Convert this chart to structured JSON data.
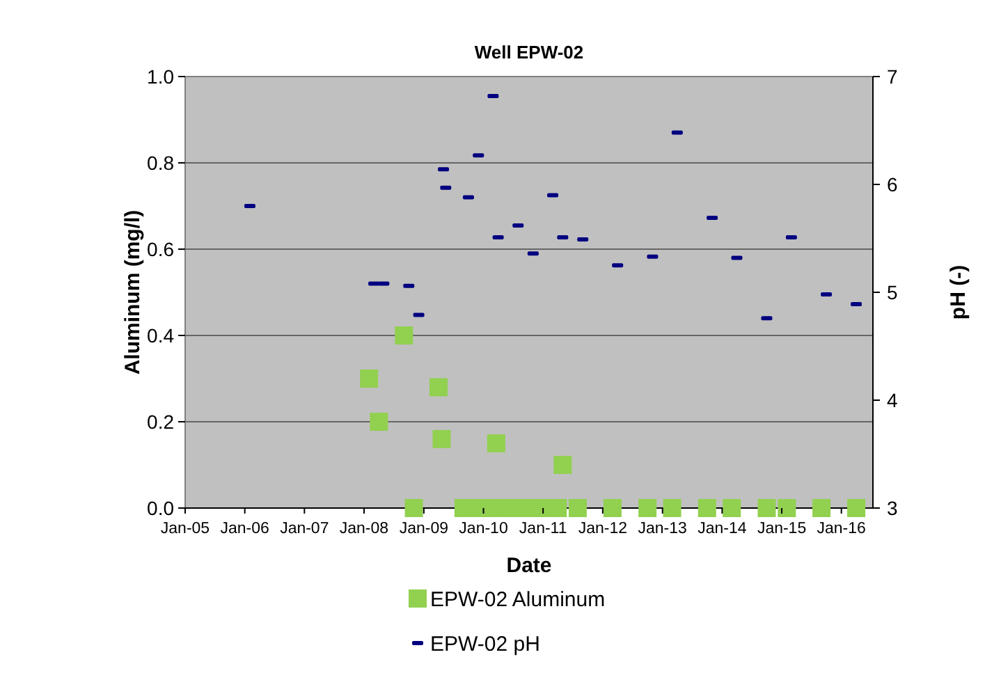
{
  "chart_data": {
    "type": "scatter",
    "title": "Well EPW-02",
    "xlabel": "Date",
    "ylabel": "Aluminum (mg/l)",
    "y2label": "pH (-)",
    "xlim": [
      "2005-01-01",
      "2016-07-12"
    ],
    "xticks": [
      {
        "value": "2005-01-01",
        "label": "Jan-05"
      },
      {
        "value": "2006-01-01",
        "label": "Jan-06"
      },
      {
        "value": "2007-01-01",
        "label": "Jan-07"
      },
      {
        "value": "2008-01-01",
        "label": "Jan-08"
      },
      {
        "value": "2009-01-01",
        "label": "Jan-09"
      },
      {
        "value": "2010-01-01",
        "label": "Jan-10"
      },
      {
        "value": "2011-01-01",
        "label": "Jan-11"
      },
      {
        "value": "2012-01-01",
        "label": "Jan-12"
      },
      {
        "value": "2013-01-01",
        "label": "Jan-13"
      },
      {
        "value": "2014-01-01",
        "label": "Jan-14"
      },
      {
        "value": "2015-01-01",
        "label": "Jan-15"
      },
      {
        "value": "2016-01-01",
        "label": "Jan-16"
      }
    ],
    "ylim": [
      0,
      1
    ],
    "yticks": [
      {
        "value": 0,
        "label": "0.0"
      },
      {
        "value": 0.2,
        "label": "0.2"
      },
      {
        "value": 0.4,
        "label": "0.4"
      },
      {
        "value": 0.6,
        "label": "0.6"
      },
      {
        "value": 0.8,
        "label": "0.8"
      },
      {
        "value": 1,
        "label": "1.0"
      }
    ],
    "y2lim": [
      3,
      7
    ],
    "y2ticks": [
      3,
      4,
      5,
      6,
      7
    ],
    "grid": "y",
    "legend": "bottom",
    "series": [
      {
        "name": "EPW-02 Aluminum",
        "color": "#92d050",
        "marker": "square",
        "x": [
          "2008-02",
          "2008-04",
          "2008-09",
          "2008-11",
          "2009-04",
          "2009-04-20",
          "2009-09",
          "2009-11",
          "2010-01",
          "2010-03",
          "2010-03-20",
          "2010-06",
          "2010-08",
          "2010-10",
          "2010-12",
          "2011-02",
          "2011-04",
          "2011-05",
          "2011-08",
          "2012-03",
          "2012-10",
          "2013-03",
          "2013-10",
          "2014-03",
          "2014-10",
          "2015-02",
          "2015-09",
          "2016-04"
        ],
        "values": [
          0.3,
          0.2,
          0.4,
          0,
          0.28,
          0.16,
          0,
          0,
          0,
          0,
          0.15,
          0,
          0,
          0,
          0,
          0,
          0,
          0.1,
          0,
          0,
          0,
          0,
          0,
          0,
          0,
          0,
          0,
          0
        ]
      },
      {
        "name": "EPW-02 pH",
        "color": "#000080",
        "marker": "square",
        "axis": "y2",
        "x": [
          "2006-02",
          "2008-03",
          "2008-05",
          "2008-10",
          "2008-12",
          "2009-05",
          "2009-05-15",
          "2009-10",
          "2009-12",
          "2010-03",
          "2010-04",
          "2010-08",
          "2010-11",
          "2011-03",
          "2011-05",
          "2011-09",
          "2012-04",
          "2012-11",
          "2013-04",
          "2013-11",
          "2014-04",
          "2014-10",
          "2015-03",
          "2015-10",
          "2016-04"
        ],
        "values": [
          5.8,
          5.08,
          5.08,
          5.06,
          4.79,
          6.14,
          5.97,
          5.88,
          6.27,
          6.82,
          5.51,
          5.62,
          5.36,
          5.9,
          5.51,
          5.49,
          5.25,
          5.33,
          6.48,
          5.69,
          5.32,
          4.76,
          5.51,
          4.98,
          4.89
        ]
      }
    ]
  }
}
